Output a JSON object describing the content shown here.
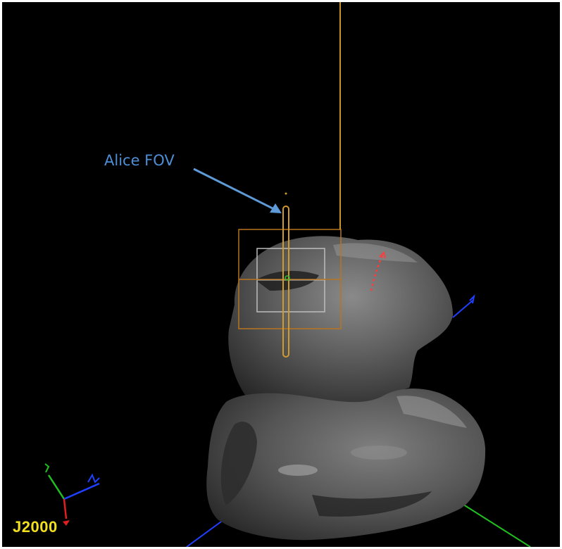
{
  "callout": {
    "label": "Alice FOV"
  },
  "frame": {
    "label": "J2000"
  },
  "icons": {
    "comet": "comet-shape-model",
    "fov": "alice-fov-slit",
    "triad": "axis-triad-icon"
  },
  "colors": {
    "background": "#000000",
    "callout_text": "#4d8fd6",
    "alice_fov": "#d19a2c",
    "frame_label": "#f2e01f",
    "axis_x": "#e02020",
    "axis_y": "#20c020",
    "axis_z": "#2040ff",
    "track": "#ff3b3b"
  }
}
